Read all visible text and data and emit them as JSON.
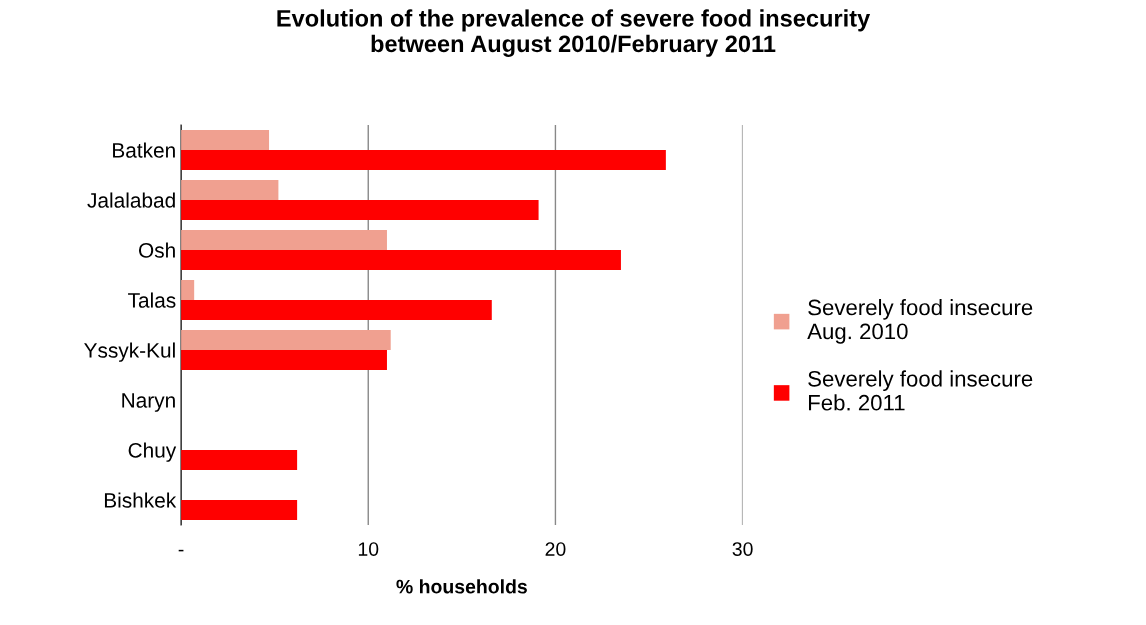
{
  "chart_data": {
    "type": "bar",
    "orientation": "horizontal",
    "title": "Evolution of the prevalence of severe food insecurity\nbetween August 2010/February 2011",
    "xlabel": "% households",
    "categories": [
      "Batken",
      "Jalalabad",
      "Osh",
      "Talas",
      "Yssyk-Kul",
      "Naryn",
      "Chuy",
      "Bishkek"
    ],
    "series": [
      {
        "name": "Severely food insecure\nAug. 2010",
        "color": "#f0a090",
        "values": [
          4.7,
          5.2,
          11.0,
          0.7,
          11.2,
          null,
          null,
          null
        ]
      },
      {
        "name": "Severely food insecure\nFeb. 2011",
        "color": "#ff0000",
        "values": [
          25.9,
          19.1,
          23.5,
          16.6,
          11.0,
          null,
          6.2,
          6.2
        ]
      }
    ],
    "xlim": [
      0,
      30
    ],
    "xticks": [
      {
        "value": 0,
        "label": "-"
      },
      10,
      20,
      30
    ],
    "grid": "x",
    "legend": "right"
  }
}
